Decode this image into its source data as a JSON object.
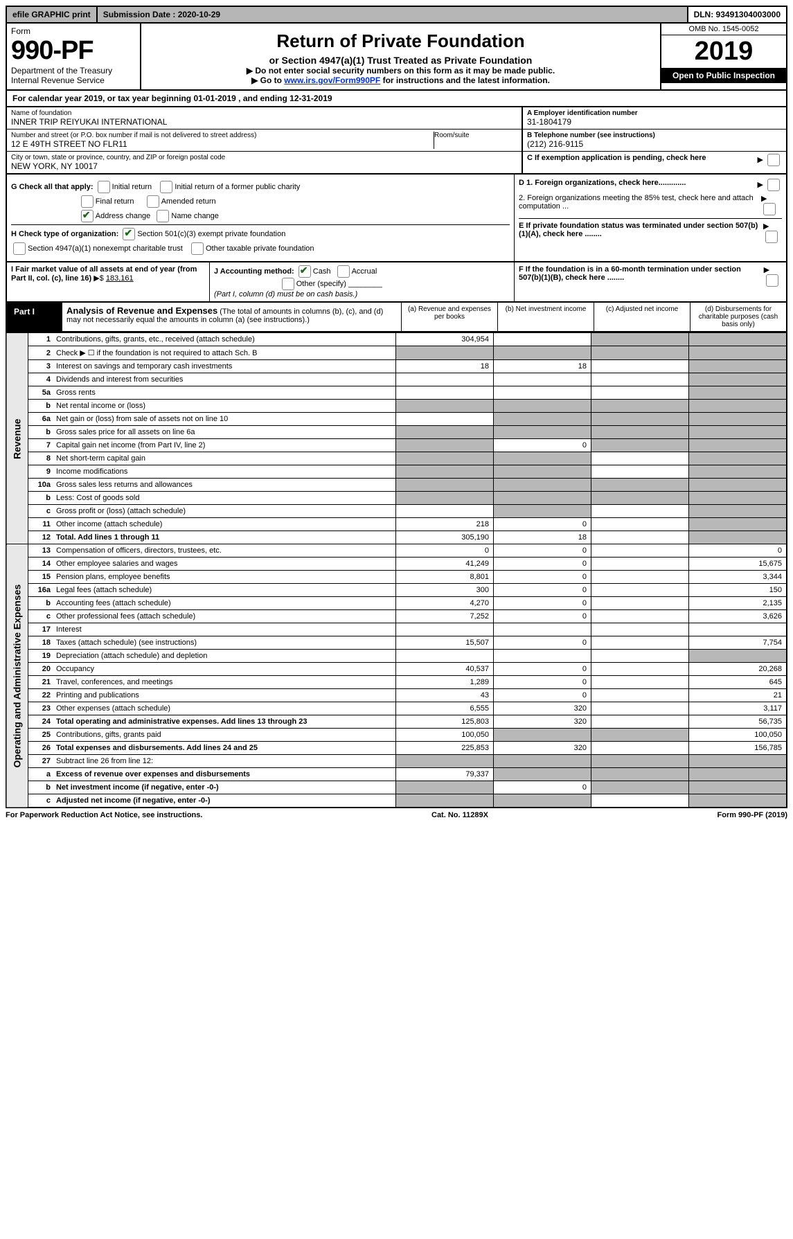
{
  "top": {
    "efile": "efile GRAPHIC print",
    "subdate_label": "Submission Date : 2020-10-29",
    "dln": "DLN: 93491304003000"
  },
  "header": {
    "form_label": "Form",
    "form_num": "990-PF",
    "dept": "Department of the Treasury",
    "irs": "Internal Revenue Service",
    "title": "Return of Private Foundation",
    "subtitle": "or Section 4947(a)(1) Trust Treated as Private Foundation",
    "line1": "▶ Do not enter social security numbers on this form as it may be made public.",
    "line2_pre": "▶ Go to ",
    "line2_link": "www.irs.gov/Form990PF",
    "line2_post": " for instructions and the latest information.",
    "omb": "OMB No. 1545-0052",
    "year": "2019",
    "open": "Open to Public Inspection"
  },
  "calyear": "For calendar year 2019, or tax year beginning 01-01-2019             , and ending 12-31-2019",
  "entity": {
    "name_label": "Name of foundation",
    "name": "INNER TRIP REIYUKAI INTERNATIONAL",
    "addr_label": "Number and street (or P.O. box number if mail is not delivered to street address)",
    "addr": "12 E 49TH STREET NO FLR11",
    "room_label": "Room/suite",
    "city_label": "City or town, state or province, country, and ZIP or foreign postal code",
    "city": "NEW YORK, NY  10017",
    "ein_label": "A Employer identification number",
    "ein": "31-1804179",
    "tel_label": "B Telephone number (see instructions)",
    "tel": "(212) 216-9115",
    "c_label": "C If exemption application is pending, check here",
    "d1": "D 1. Foreign organizations, check here.............",
    "d2": "2. Foreign organizations meeting the 85% test, check here and attach computation ...",
    "e": "E If private foundation status was terminated under section 507(b)(1)(A), check here ........",
    "f": "F If the foundation is in a 60-month termination under section 507(b)(1)(B), check here ........"
  },
  "g": {
    "label": "G Check all that apply:",
    "initial": "Initial return",
    "initial_former": "Initial return of a former public charity",
    "final": "Final return",
    "amended": "Amended return",
    "addr_change": "Address change",
    "name_change": "Name change"
  },
  "h": {
    "label": "H Check type of organization:",
    "c3": "Section 501(c)(3) exempt private foundation",
    "trust": "Section 4947(a)(1) nonexempt charitable trust",
    "other": "Other taxable private foundation"
  },
  "i": {
    "label": "I Fair market value of all assets at end of year (from Part II, col. (c), line 16)",
    "arrow": "▶$",
    "value": "183,161"
  },
  "j": {
    "label": "J Accounting method:",
    "cash": "Cash",
    "accrual": "Accrual",
    "other": "Other (specify)",
    "note": "(Part I, column (d) must be on cash basis.)"
  },
  "part1": {
    "label": "Part I",
    "title": "Analysis of Revenue and Expenses",
    "note": "(The total of amounts in columns (b), (c), and (d) may not necessarily equal the amounts in column (a) (see instructions).)",
    "col_a": "(a) Revenue and expenses per books",
    "col_b": "(b) Net investment income",
    "col_c": "(c) Adjusted net income",
    "col_d": "(d) Disbursements for charitable purposes (cash basis only)"
  },
  "vlabels": {
    "rev": "Revenue",
    "exp": "Operating and Administrative Expenses"
  },
  "rows": [
    {
      "n": "1",
      "d": "Contributions, gifts, grants, etc., received (attach schedule)",
      "a": "304,954",
      "b": "",
      "c": "shade",
      "dd": "shade"
    },
    {
      "n": "2",
      "d": "Check ▶ ☐ if the foundation is not required to attach Sch. B",
      "a": "shade",
      "b": "shade",
      "c": "shade",
      "dd": "shade"
    },
    {
      "n": "3",
      "d": "Interest on savings and temporary cash investments",
      "a": "18",
      "b": "18",
      "c": "",
      "dd": "shade"
    },
    {
      "n": "4",
      "d": "Dividends and interest from securities",
      "a": "",
      "b": "",
      "c": "",
      "dd": "shade"
    },
    {
      "n": "5a",
      "d": "Gross rents",
      "a": "",
      "b": "",
      "c": "",
      "dd": "shade"
    },
    {
      "n": "b",
      "d": "Net rental income or (loss)",
      "a": "shade",
      "b": "shade",
      "c": "shade",
      "dd": "shade"
    },
    {
      "n": "6a",
      "d": "Net gain or (loss) from sale of assets not on line 10",
      "a": "",
      "b": "shade",
      "c": "shade",
      "dd": "shade"
    },
    {
      "n": "b",
      "d": "Gross sales price for all assets on line 6a",
      "a": "shade",
      "b": "shade",
      "c": "shade",
      "dd": "shade"
    },
    {
      "n": "7",
      "d": "Capital gain net income (from Part IV, line 2)",
      "a": "shade",
      "b": "0",
      "c": "shade",
      "dd": "shade"
    },
    {
      "n": "8",
      "d": "Net short-term capital gain",
      "a": "shade",
      "b": "shade",
      "c": "",
      "dd": "shade"
    },
    {
      "n": "9",
      "d": "Income modifications",
      "a": "shade",
      "b": "shade",
      "c": "",
      "dd": "shade"
    },
    {
      "n": "10a",
      "d": "Gross sales less returns and allowances",
      "a": "shade",
      "b": "shade",
      "c": "shade",
      "dd": "shade"
    },
    {
      "n": "b",
      "d": "Less: Cost of goods sold",
      "a": "shade",
      "b": "shade",
      "c": "shade",
      "dd": "shade"
    },
    {
      "n": "c",
      "d": "Gross profit or (loss) (attach schedule)",
      "a": "",
      "b": "shade",
      "c": "",
      "dd": "shade"
    },
    {
      "n": "11",
      "d": "Other income (attach schedule)",
      "a": "218",
      "b": "0",
      "c": "",
      "dd": "shade"
    },
    {
      "n": "12",
      "d": "Total. Add lines 1 through 11",
      "a": "305,190",
      "b": "18",
      "c": "",
      "dd": "shade",
      "bold": true
    },
    {
      "n": "13",
      "d": "Compensation of officers, directors, trustees, etc.",
      "a": "0",
      "b": "0",
      "c": "",
      "dd": "0"
    },
    {
      "n": "14",
      "d": "Other employee salaries and wages",
      "a": "41,249",
      "b": "0",
      "c": "",
      "dd": "15,675"
    },
    {
      "n": "15",
      "d": "Pension plans, employee benefits",
      "a": "8,801",
      "b": "0",
      "c": "",
      "dd": "3,344"
    },
    {
      "n": "16a",
      "d": "Legal fees (attach schedule)",
      "a": "300",
      "b": "0",
      "c": "",
      "dd": "150"
    },
    {
      "n": "b",
      "d": "Accounting fees (attach schedule)",
      "a": "4,270",
      "b": "0",
      "c": "",
      "dd": "2,135"
    },
    {
      "n": "c",
      "d": "Other professional fees (attach schedule)",
      "a": "7,252",
      "b": "0",
      "c": "",
      "dd": "3,626"
    },
    {
      "n": "17",
      "d": "Interest",
      "a": "",
      "b": "",
      "c": "",
      "dd": ""
    },
    {
      "n": "18",
      "d": "Taxes (attach schedule) (see instructions)",
      "a": "15,507",
      "b": "0",
      "c": "",
      "dd": "7,754"
    },
    {
      "n": "19",
      "d": "Depreciation (attach schedule) and depletion",
      "a": "",
      "b": "",
      "c": "",
      "dd": "shade"
    },
    {
      "n": "20",
      "d": "Occupancy",
      "a": "40,537",
      "b": "0",
      "c": "",
      "dd": "20,268"
    },
    {
      "n": "21",
      "d": "Travel, conferences, and meetings",
      "a": "1,289",
      "b": "0",
      "c": "",
      "dd": "645"
    },
    {
      "n": "22",
      "d": "Printing and publications",
      "a": "43",
      "b": "0",
      "c": "",
      "dd": "21"
    },
    {
      "n": "23",
      "d": "Other expenses (attach schedule)",
      "a": "6,555",
      "b": "320",
      "c": "",
      "dd": "3,117"
    },
    {
      "n": "24",
      "d": "Total operating and administrative expenses. Add lines 13 through 23",
      "a": "125,803",
      "b": "320",
      "c": "",
      "dd": "56,735",
      "bold": true
    },
    {
      "n": "25",
      "d": "Contributions, gifts, grants paid",
      "a": "100,050",
      "b": "shade",
      "c": "shade",
      "dd": "100,050"
    },
    {
      "n": "26",
      "d": "Total expenses and disbursements. Add lines 24 and 25",
      "a": "225,853",
      "b": "320",
      "c": "",
      "dd": "156,785",
      "bold": true
    },
    {
      "n": "27",
      "d": "Subtract line 26 from line 12:",
      "a": "shade",
      "b": "shade",
      "c": "shade",
      "dd": "shade"
    },
    {
      "n": "a",
      "d": "Excess of revenue over expenses and disbursements",
      "a": "79,337",
      "b": "shade",
      "c": "shade",
      "dd": "shade",
      "bold": true
    },
    {
      "n": "b",
      "d": "Net investment income (if negative, enter -0-)",
      "a": "shade",
      "b": "0",
      "c": "shade",
      "dd": "shade",
      "bold": true
    },
    {
      "n": "c",
      "d": "Adjusted net income (if negative, enter -0-)",
      "a": "shade",
      "b": "shade",
      "c": "",
      "dd": "shade",
      "bold": true
    }
  ],
  "footer": {
    "left": "For Paperwork Reduction Act Notice, see instructions.",
    "mid": "Cat. No. 11289X",
    "right": "Form 990-PF (2019)"
  }
}
